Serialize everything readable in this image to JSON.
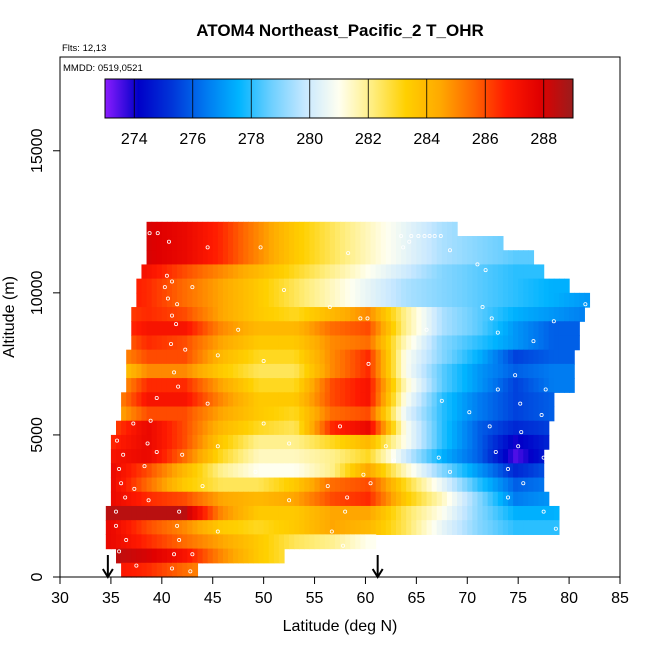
{
  "chart_data": {
    "type": "heatmap",
    "title": "ATOM4 Northeast_Pacific_2 T_OHR",
    "note_flights": "Flts: 12,13",
    "note_dates": "MMDD: 0519,0521",
    "xlabel": "Latitude (deg N)",
    "ylabel": "Altitude (m)",
    "xlim": [
      30,
      85
    ],
    "ylim": [
      0,
      18300
    ],
    "x_ticks": [
      30,
      35,
      40,
      45,
      50,
      55,
      60,
      65,
      70,
      75,
      80,
      85
    ],
    "y_ticks": [
      0,
      5000,
      10000,
      15000
    ],
    "colorbar": {
      "range": [
        273,
        289
      ],
      "ticks": [
        274,
        276,
        278,
        280,
        282,
        284,
        286,
        288
      ],
      "colors": [
        "#8b1cff",
        "#0000c8",
        "#0035d8",
        "#0078f0",
        "#00b4ff",
        "#6fd0ff",
        "#c8e8ff",
        "#fffff0",
        "#ffee80",
        "#ffd000",
        "#ffaa00",
        "#ff6800",
        "#ff1a00",
        "#e00000",
        "#9b1c1c"
      ]
    },
    "arrows_latitude": [
      34.7,
      61.2
    ],
    "cells": [
      {
        "y0": 12000,
        "y1": 12500,
        "lat_start": 38.5,
        "lat_end": 69,
        "temps": [
          288.5,
          288,
          287.5,
          286.5,
          285,
          283.5,
          282.5,
          281.5,
          280.5,
          279.5,
          279,
          278.5,
          278.5,
          278.5
        ]
      },
      {
        "y0": 11500,
        "y1": 12000,
        "lat_start": 38.5,
        "lat_end": 73.5,
        "temps": [
          288.5,
          288,
          287.5,
          286.5,
          285,
          283.5,
          282.5,
          281.5,
          280.5,
          279.5,
          279,
          278.5,
          278.5,
          278.5
        ]
      },
      {
        "y0": 11000,
        "y1": 11500,
        "lat_start": 38.5,
        "lat_end": 76.5,
        "temps": [
          288.5,
          288,
          287.5,
          286.5,
          285,
          283.5,
          282.5,
          281.5,
          280.5,
          279.5,
          279,
          278.5,
          278.5,
          278.5
        ]
      },
      {
        "y0": 10500,
        "y1": 11000,
        "lat_start": 38,
        "lat_end": 77.5,
        "temps": [
          287.5,
          287,
          286,
          285,
          284,
          283,
          282,
          281,
          280,
          279,
          278.5,
          278,
          278,
          278
        ]
      },
      {
        "y0": 10000,
        "y1": 10500,
        "lat_start": 37.5,
        "lat_end": 80,
        "temps": [
          287,
          286.5,
          285.5,
          284.5,
          283.5,
          282.5,
          281.5,
          280.5,
          279.5,
          279,
          278.5,
          278,
          277.5,
          277.5
        ]
      },
      {
        "y0": 9500,
        "y1": 10000,
        "lat_start": 37.5,
        "lat_end": 82,
        "temps": [
          287,
          286.5,
          285.5,
          284.5,
          283.5,
          282.5,
          281.5,
          280.5,
          279.5,
          279,
          278.5,
          278,
          277.5,
          277
        ]
      },
      {
        "y0": 9000,
        "y1": 9500,
        "lat_start": 37,
        "lat_end": 81.5,
        "temps": [
          286,
          286.5,
          286,
          284.5,
          283.5,
          283,
          284,
          285,
          282,
          279.5,
          278.5,
          277.5,
          277,
          276.5
        ]
      },
      {
        "y0": 8500,
        "y1": 9000,
        "lat_start": 37,
        "lat_end": 81,
        "temps": [
          286,
          287,
          287,
          285,
          284,
          284,
          285.5,
          286,
          282,
          279.5,
          278.5,
          277,
          276,
          276
        ]
      },
      {
        "y0": 8000,
        "y1": 8500,
        "lat_start": 37,
        "lat_end": 81,
        "temps": [
          285,
          286.5,
          286,
          284.5,
          283.5,
          283.5,
          285,
          285.5,
          281.5,
          279,
          278,
          277,
          276,
          276
        ]
      },
      {
        "y0": 7500,
        "y1": 8000,
        "lat_start": 36.5,
        "lat_end": 80.5,
        "temps": [
          284.5,
          286,
          286,
          284,
          283,
          283,
          285,
          286.5,
          281,
          279,
          277.5,
          275.5,
          276,
          276
        ]
      },
      {
        "y0": 7000,
        "y1": 7500,
        "lat_start": 36.5,
        "lat_end": 80.5,
        "temps": [
          283,
          285,
          285,
          283.5,
          282.5,
          282.5,
          285,
          286.5,
          281,
          278.5,
          277,
          276,
          276.5,
          276.5
        ]
      },
      {
        "y0": 6500,
        "y1": 7000,
        "lat_start": 36.5,
        "lat_end": 80.5,
        "temps": [
          284,
          286.5,
          286.5,
          284.5,
          283,
          283,
          286,
          287,
          281.5,
          278.5,
          277,
          275.5,
          276.5,
          276.5
        ]
      },
      {
        "y0": 6000,
        "y1": 6500,
        "lat_start": 36,
        "lat_end": 78.5,
        "temps": [
          284.5,
          287,
          287,
          285,
          283.5,
          283.5,
          286,
          287,
          281,
          278,
          276.5,
          275.5,
          276,
          276
        ]
      },
      {
        "y0": 5500,
        "y1": 6000,
        "lat_start": 36,
        "lat_end": 78.5,
        "temps": [
          284,
          286,
          286,
          284.5,
          283.5,
          283,
          285.5,
          286,
          280.5,
          278,
          276.5,
          275.5,
          276,
          276
        ]
      },
      {
        "y0": 5000,
        "y1": 5500,
        "lat_start": 35.5,
        "lat_end": 78,
        "temps": [
          286,
          287.5,
          286,
          284,
          283,
          282.5,
          286.5,
          287.5,
          281,
          278,
          276,
          275,
          275.5,
          276
        ]
      },
      {
        "y0": 4500,
        "y1": 5000,
        "lat_start": 35,
        "lat_end": 78,
        "temps": [
          286.5,
          287.5,
          286,
          283.5,
          282,
          282,
          283,
          284,
          281,
          278,
          276,
          274,
          275,
          276
        ]
      },
      {
        "y0": 4000,
        "y1": 4500,
        "lat_start": 35,
        "lat_end": 77.5,
        "temps": [
          287,
          287.5,
          285.5,
          283,
          281.5,
          281.5,
          282,
          283,
          280,
          277.5,
          276,
          273.5,
          275,
          276
        ]
      },
      {
        "y0": 3500,
        "y1": 4000,
        "lat_start": 35,
        "lat_end": 77.5,
        "temps": [
          287.5,
          286,
          284,
          282,
          281,
          281,
          282,
          284.5,
          281.5,
          279,
          277,
          275,
          276,
          277
        ]
      },
      {
        "y0": 3000,
        "y1": 3500,
        "lat_start": 35,
        "lat_end": 77.5,
        "temps": [
          287.5,
          285.5,
          283.5,
          282.5,
          282.5,
          283.5,
          285.5,
          286,
          283,
          280.5,
          278,
          276,
          276.5,
          277
        ]
      },
      {
        "y0": 2500,
        "y1": 3000,
        "lat_start": 35,
        "lat_end": 78,
        "temps": [
          287.5,
          286.5,
          286,
          284.5,
          284,
          284.5,
          286,
          286.5,
          283.5,
          281.5,
          279,
          276.5,
          277,
          277.5
        ]
      },
      {
        "y0": 2000,
        "y1": 2500,
        "lat_start": 34.5,
        "lat_end": 79,
        "temps": [
          288.5,
          288.5,
          288.5,
          285,
          283.5,
          283.5,
          284.5,
          284.5,
          282.5,
          281,
          279,
          277.5,
          277.5,
          278
        ]
      },
      {
        "y0": 1500,
        "y1": 2000,
        "lat_start": 34.5,
        "lat_end": 79,
        "temps": [
          287.5,
          286,
          285,
          283.5,
          283,
          283.5,
          284.5,
          284,
          282.5,
          280.5,
          279,
          278,
          278,
          278
        ]
      },
      {
        "y0": 1000,
        "y1": 1500,
        "lat_start": 34.5,
        "lat_end": 61,
        "temps": [
          287.5,
          286.5,
          285.5,
          284.5,
          283.5,
          282.5,
          282,
          281,
          281,
          281,
          281,
          281,
          281,
          281
        ]
      },
      {
        "y0": 500,
        "y1": 1000,
        "lat_start": 35.5,
        "lat_end": 52,
        "temps": [
          288.5,
          288,
          287,
          285,
          283.5,
          282.5,
          281.5,
          281,
          281,
          281,
          281,
          281,
          281,
          281
        ]
      },
      {
        "y0": 0,
        "y1": 500,
        "lat_start": 36,
        "lat_end": 43.5,
        "temps": [
          287,
          286.5,
          285.5,
          284.5,
          284,
          284,
          284,
          284,
          284,
          284,
          284,
          284,
          284,
          284
        ]
      }
    ],
    "sample_points": [
      [
        38.8,
        12100
      ],
      [
        39.6,
        12100
      ],
      [
        40.7,
        11800
      ],
      [
        44.5,
        11600
      ],
      [
        49.7,
        11600
      ],
      [
        58.3,
        11400
      ],
      [
        63.5,
        12000
      ],
      [
        64.5,
        12000
      ],
      [
        65.2,
        12000
      ],
      [
        65.8,
        12000
      ],
      [
        66.3,
        12000
      ],
      [
        66.8,
        12000
      ],
      [
        67.4,
        12000
      ],
      [
        64.3,
        11800
      ],
      [
        63.7,
        11600
      ],
      [
        68.3,
        11500
      ],
      [
        71.0,
        11000
      ],
      [
        71.8,
        10800
      ],
      [
        40.5,
        10600
      ],
      [
        41.0,
        10400
      ],
      [
        40.3,
        10200
      ],
      [
        43.0,
        10200
      ],
      [
        52.0,
        10100
      ],
      [
        40.6,
        9800
      ],
      [
        41.5,
        9600
      ],
      [
        56.5,
        9500
      ],
      [
        71.5,
        9500
      ],
      [
        81.6,
        9600
      ],
      [
        41.0,
        9200
      ],
      [
        59.5,
        9100
      ],
      [
        60.2,
        9100
      ],
      [
        72.4,
        9100
      ],
      [
        78.5,
        9000
      ],
      [
        41.4,
        8900
      ],
      [
        47.5,
        8700
      ],
      [
        66.0,
        8700
      ],
      [
        73.0,
        8600
      ],
      [
        76.5,
        8300
      ],
      [
        40.9,
        8200
      ],
      [
        42.3,
        8000
      ],
      [
        45.5,
        7800
      ],
      [
        50.0,
        7600
      ],
      [
        60.3,
        7500
      ],
      [
        41.2,
        7200
      ],
      [
        74.7,
        7100
      ],
      [
        41.6,
        6700
      ],
      [
        73.0,
        6600
      ],
      [
        77.7,
        6600
      ],
      [
        39.5,
        6300
      ],
      [
        44.5,
        6100
      ],
      [
        67.5,
        6200
      ],
      [
        75.2,
        6100
      ],
      [
        70.2,
        5800
      ],
      [
        77.3,
        5700
      ],
      [
        37.2,
        5400
      ],
      [
        38.9,
        5500
      ],
      [
        50.0,
        5400
      ],
      [
        57.5,
        5300
      ],
      [
        72.2,
        5300
      ],
      [
        75.3,
        5100
      ],
      [
        35.6,
        4800
      ],
      [
        38.6,
        4700
      ],
      [
        45.5,
        4600
      ],
      [
        52.5,
        4700
      ],
      [
        62.0,
        4600
      ],
      [
        75.0,
        4600
      ],
      [
        36.2,
        4300
      ],
      [
        39.5,
        4400
      ],
      [
        42.0,
        4300
      ],
      [
        62.8,
        4100
      ],
      [
        67.2,
        4200
      ],
      [
        72.8,
        4400
      ],
      [
        77.5,
        4200
      ],
      [
        35.8,
        3800
      ],
      [
        38.3,
        3900
      ],
      [
        49.2,
        3700
      ],
      [
        59.8,
        3600
      ],
      [
        68.3,
        3700
      ],
      [
        74.0,
        3800
      ],
      [
        36.0,
        3300
      ],
      [
        37.3,
        3100
      ],
      [
        44.0,
        3200
      ],
      [
        56.3,
        3200
      ],
      [
        60.5,
        3300
      ],
      [
        75.5,
        3300
      ],
      [
        36.4,
        2800
      ],
      [
        38.7,
        2700
      ],
      [
        52.5,
        2700
      ],
      [
        58.2,
        2800
      ],
      [
        74.0,
        2800
      ],
      [
        35.5,
        2300
      ],
      [
        41.7,
        2300
      ],
      [
        58.0,
        2300
      ],
      [
        77.5,
        2300
      ],
      [
        35.5,
        1800
      ],
      [
        41.5,
        1800
      ],
      [
        56.7,
        1600
      ],
      [
        45.5,
        1600
      ],
      [
        78.7,
        1700
      ],
      [
        36.5,
        1300
      ],
      [
        41.7,
        1300
      ],
      [
        57.8,
        1100
      ],
      [
        35.8,
        900
      ],
      [
        41.2,
        800
      ],
      [
        43.0,
        800
      ],
      [
        37.5,
        400
      ],
      [
        41.0,
        300
      ],
      [
        42.8,
        200
      ]
    ]
  }
}
